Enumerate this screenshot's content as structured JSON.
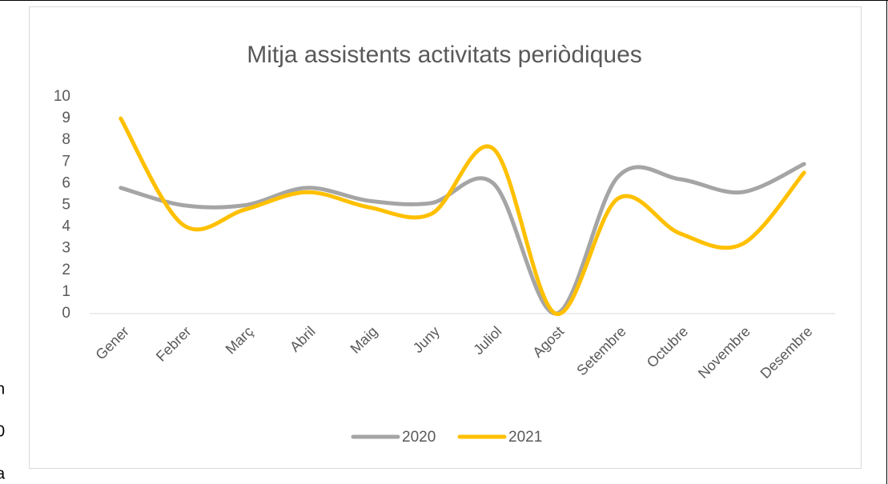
{
  "chart_data": {
    "type": "line",
    "title": "Mitja assistents activitats periòdiques",
    "categories": [
      "Gener",
      "Febrer",
      "Març",
      "Abril",
      "Maig",
      "Juny",
      "Juliol",
      "Agost",
      "Setembre",
      "Octubre",
      "Novembre",
      "Desembre"
    ],
    "series": [
      {
        "name": "2020",
        "color": "#a5a5a5",
        "values": [
          5.8,
          5.0,
          5.0,
          5.8,
          5.2,
          5.1,
          6.0,
          0,
          6.3,
          6.2,
          5.6,
          6.9
        ]
      },
      {
        "name": "2021",
        "color": "#ffc000",
        "values": [
          9.0,
          4.1,
          4.8,
          5.6,
          4.9,
          4.6,
          7.6,
          0,
          5.3,
          3.7,
          3.2,
          6.5
        ]
      }
    ],
    "ylim": [
      0,
      10
    ],
    "yticks": [
      0,
      1,
      2,
      3,
      4,
      5,
      6,
      7,
      8,
      9,
      10
    ],
    "grid": false,
    "smooth": true,
    "legend": "bottom"
  },
  "side_text": [
    "n",
    "0",
    "a"
  ]
}
